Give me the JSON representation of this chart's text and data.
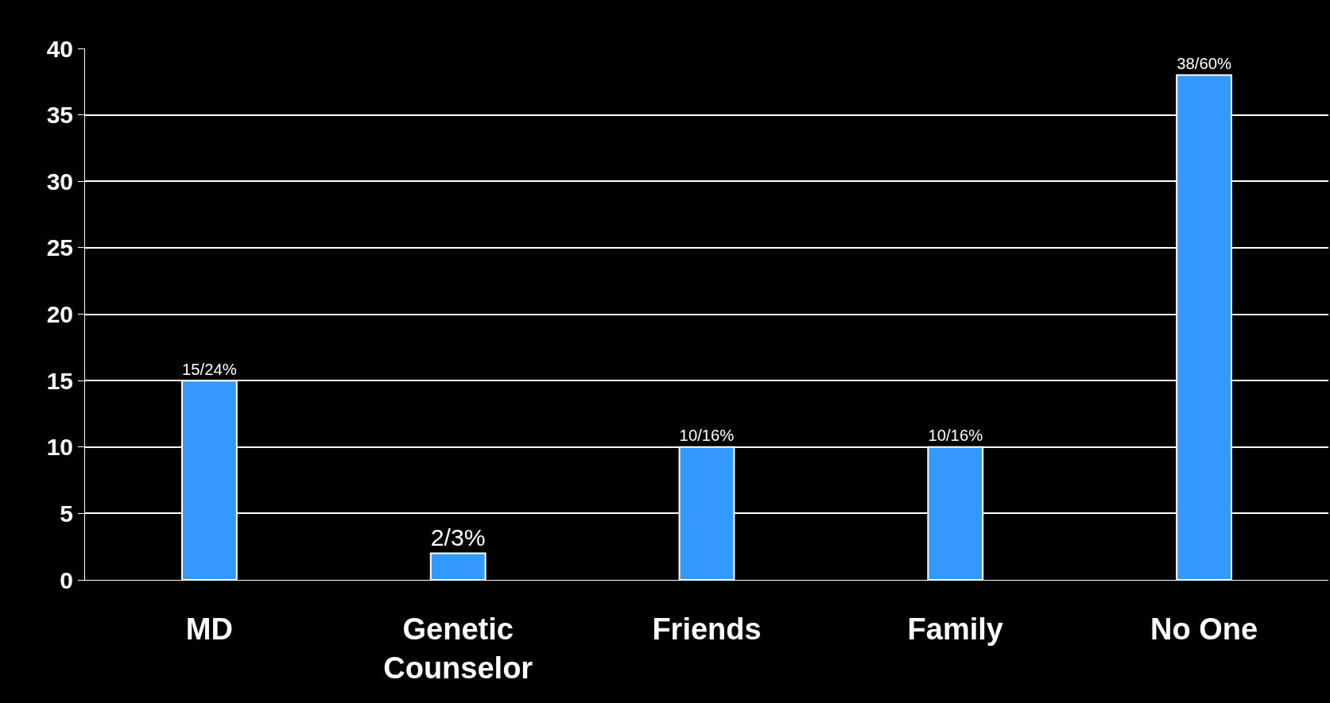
{
  "chart_data": {
    "type": "bar",
    "categories": [
      "MD",
      "Genetic Counselor",
      "Friends",
      "Family",
      "No One"
    ],
    "values": [
      15,
      2,
      10,
      10,
      38
    ],
    "value_labels": [
      "15/24%",
      "2/3%",
      "10/16%",
      "10/16%",
      "38/60%"
    ],
    "color": "#3399ff",
    "ylim": [
      0,
      40
    ],
    "yticks": [
      0,
      5,
      10,
      15,
      20,
      25,
      30,
      35,
      40
    ],
    "grid": "y"
  }
}
